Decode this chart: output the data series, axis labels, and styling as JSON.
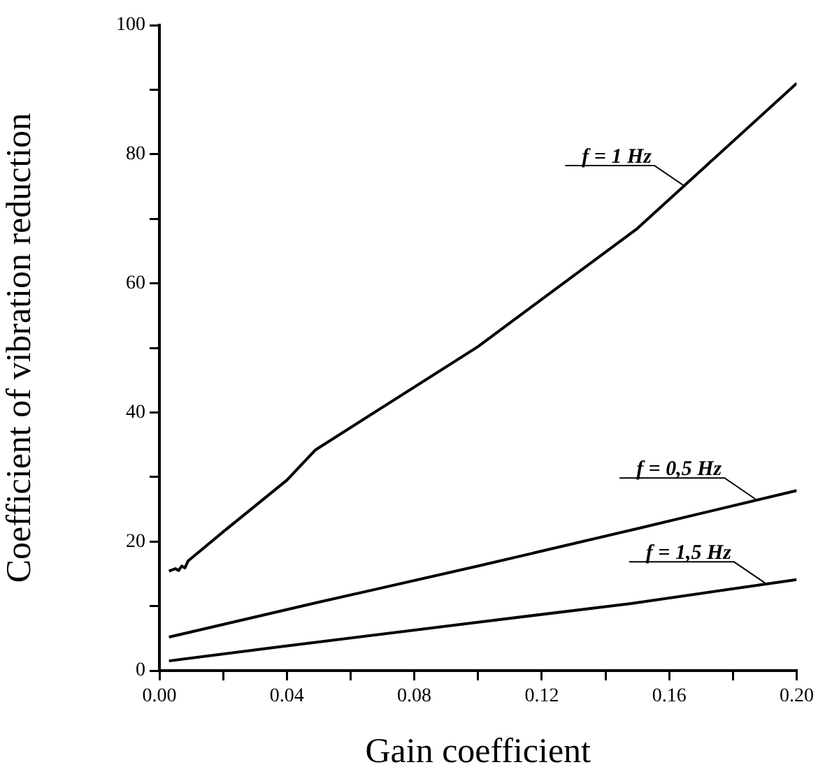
{
  "chart_data": {
    "type": "line",
    "xlabel": "Gain coefficient",
    "ylabel": "Coefficient of vibration reduction",
    "xlim": [
      0,
      0.2
    ],
    "ylim": [
      0,
      100
    ],
    "xticks": [
      {
        "value": 0,
        "label": "0.00"
      },
      {
        "value": 0.02,
        "label": null
      },
      {
        "value": 0.04,
        "label": "0.04"
      },
      {
        "value": 0.06,
        "label": null
      },
      {
        "value": 0.08,
        "label": "0.08"
      },
      {
        "value": 0.1,
        "label": null
      },
      {
        "value": 0.12,
        "label": "0.12"
      },
      {
        "value": 0.14,
        "label": null
      },
      {
        "value": 0.16,
        "label": "0.16"
      },
      {
        "value": 0.18,
        "label": null
      },
      {
        "value": 0.2,
        "label": "0.20"
      }
    ],
    "yticks": [
      0,
      {
        "value": 10,
        "label": null
      },
      20,
      {
        "value": 30,
        "label": null
      },
      40,
      {
        "value": 50,
        "label": null
      },
      60,
      {
        "value": 70,
        "label": null
      },
      80,
      {
        "value": 90,
        "label": null
      },
      100
    ],
    "grid": false,
    "legend": false,
    "marker": "none",
    "line_style": "solid",
    "series": [
      {
        "color": "#000000",
        "x": [
          0.003,
          0.005,
          0.006,
          0.007,
          0.008,
          0.009,
          0.02,
          0.04,
          0.049,
          0.1,
          0.15,
          0.2
        ],
        "values": [
          15.4,
          15.8,
          15.5,
          16.2,
          15.9,
          17,
          21.5,
          29.5,
          34.2,
          50.2,
          68.5,
          91
        ]
      },
      {
        "color": "#000000",
        "x": [
          0.003,
          0.05,
          0.1,
          0.15,
          0.2
        ],
        "values": [
          5.2,
          10.6,
          16.2,
          22,
          27.9
        ]
      },
      {
        "color": "#000000",
        "x": [
          0.003,
          0.038,
          0.1,
          0.148,
          0.2
        ],
        "values": [
          1.5,
          3.7,
          7.5,
          10.4,
          14.1
        ]
      }
    ],
    "annotations": [
      {
        "text": "f = 1 Hz",
        "x": 0.165,
        "y": 75
      },
      {
        "text": "f = 0,5 Hz",
        "x": 0.187,
        "y": 26.6
      },
      {
        "text": "f = 1,5 Hz",
        "x": 0.19,
        "y": 13.6
      }
    ]
  }
}
